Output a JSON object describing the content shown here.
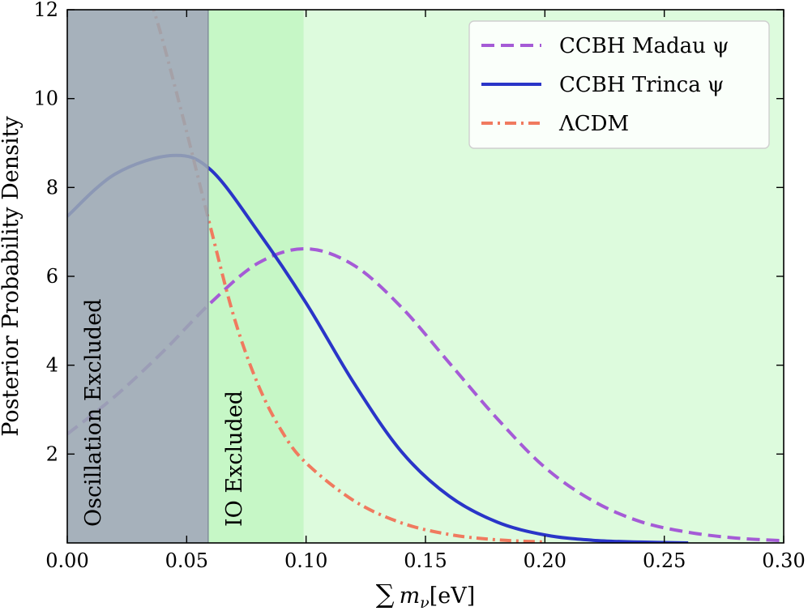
{
  "chart_data": {
    "type": "line",
    "xlabel": "∑ m_ν [eV]",
    "xlabel_parts": {
      "sum": "∑",
      "m": "m",
      "sub": "ν",
      "unit": "[eV]"
    },
    "ylabel": "Posterior Probability Density",
    "xlim": [
      0.0,
      0.3
    ],
    "ylim": [
      0,
      12
    ],
    "x_ticks": [
      0.0,
      0.05,
      0.1,
      0.15,
      0.2,
      0.25,
      0.3
    ],
    "x_tick_labels": [
      "0.00",
      "0.05",
      "0.10",
      "0.15",
      "0.20",
      "0.25",
      "0.30"
    ],
    "y_ticks": [
      2,
      4,
      6,
      8,
      10,
      12
    ],
    "y_tick_labels": [
      "2",
      "4",
      "6",
      "8",
      "10",
      "12"
    ],
    "grid": false,
    "legend_position": "top-right",
    "regions": [
      {
        "label": "Oscillation Excluded",
        "x_range": [
          0.0,
          0.059
        ],
        "color": "#9aa6b2"
      },
      {
        "label": "IO Excluded",
        "x_range": [
          0.059,
          0.099
        ],
        "color": "#c6f7c6"
      }
    ],
    "background_region": {
      "x_range": [
        0.099,
        0.3
      ],
      "color": "#ddfbdd"
    },
    "series": [
      {
        "name": "CCBH Madau ψ",
        "style": "dashed",
        "color": "#a55bd6",
        "x": [
          0.0,
          0.02,
          0.04,
          0.06,
          0.08,
          0.1,
          0.12,
          0.14,
          0.16,
          0.18,
          0.2,
          0.22,
          0.24,
          0.26,
          0.28,
          0.3
        ],
        "y": [
          2.45,
          3.3,
          4.3,
          5.4,
          6.3,
          6.62,
          6.25,
          5.3,
          4.05,
          2.8,
          1.7,
          0.95,
          0.48,
          0.24,
          0.11,
          0.05
        ]
      },
      {
        "name": "CCBH Trinca ψ",
        "style": "solid",
        "color": "#2a35c8",
        "x": [
          0.0,
          0.02,
          0.044,
          0.06,
          0.08,
          0.1,
          0.12,
          0.14,
          0.16,
          0.18,
          0.2,
          0.22,
          0.24,
          0.26
        ],
        "y": [
          7.35,
          8.3,
          8.72,
          8.4,
          7.0,
          5.4,
          3.6,
          2.05,
          1.05,
          0.47,
          0.18,
          0.06,
          0.02,
          0.0
        ]
      },
      {
        "name": "ΛCDM",
        "style": "dashdot",
        "color": "#f07a5f",
        "x": [
          0.035,
          0.04,
          0.05,
          0.06,
          0.07,
          0.08,
          0.09,
          0.1,
          0.12,
          0.14,
          0.16,
          0.18,
          0.2
        ],
        "y": [
          12.2,
          11.3,
          9.25,
          7.1,
          5.05,
          3.55,
          2.5,
          1.8,
          0.95,
          0.45,
          0.19,
          0.07,
          0.02
        ]
      }
    ]
  }
}
